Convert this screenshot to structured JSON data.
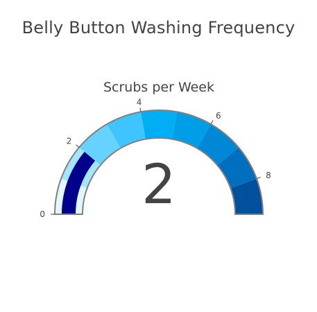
{
  "title": "Belly Button Washing Frequency",
  "chart_data": {
    "type": "gauge",
    "title": "Scrubs per Week",
    "value": 2,
    "range": [
      0,
      9
    ],
    "ticks": [
      0,
      2,
      4,
      6,
      8
    ],
    "tick_labels": [
      "0",
      "2",
      "4",
      "6",
      "8"
    ],
    "bar_color": "#00008B",
    "steps": [
      {
        "range": [
          0,
          1
        ],
        "color": "#E0F7FF"
      },
      {
        "range": [
          1,
          2
        ],
        "color": "#A3E4FF"
      },
      {
        "range": [
          2,
          3
        ],
        "color": "#66D2FF"
      },
      {
        "range": [
          3,
          4
        ],
        "color": "#3EC4FF"
      },
      {
        "range": [
          4,
          5
        ],
        "color": "#00AEF5"
      },
      {
        "range": [
          5,
          6
        ],
        "color": "#009EE6"
      },
      {
        "range": [
          6,
          7
        ],
        "color": "#0088D6"
      },
      {
        "range": [
          7,
          8
        ],
        "color": "#006FBF"
      },
      {
        "range": [
          8,
          9
        ],
        "color": "#00509E"
      }
    ],
    "border_color": "#808080"
  }
}
